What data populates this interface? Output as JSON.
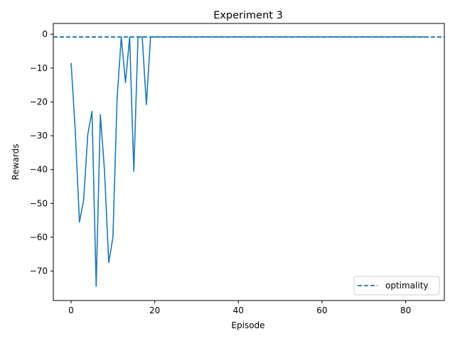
{
  "chart_data": {
    "type": "line",
    "title": "Experiment 3",
    "xlabel": "Episode",
    "ylabel": "Rewards",
    "xlim": [
      -4.25,
      89.25
    ],
    "ylim": [
      -78.7,
      3.2
    ],
    "x_ticks": [
      0,
      20,
      40,
      60,
      80
    ],
    "y_ticks": [
      0,
      -10,
      -20,
      -30,
      -40,
      -50,
      -60,
      -70
    ],
    "x_tick_labels": [
      "0",
      "20",
      "40",
      "60",
      "80"
    ],
    "y_tick_labels": [
      "0",
      "−10",
      "−20",
      "−30",
      "−40",
      "−50",
      "−60",
      "−70"
    ],
    "grid": false,
    "legend": {
      "position": "lower-right",
      "entries": [
        "optimality"
      ]
    },
    "series": [
      {
        "color": "#1f77b4",
        "style": "solid",
        "x": [
          0,
          1,
          2,
          3,
          4,
          5,
          6,
          7,
          8,
          9,
          10,
          11,
          12,
          13,
          14,
          15,
          16,
          17,
          18,
          19,
          20,
          21,
          22,
          23,
          24,
          25,
          26,
          27,
          28,
          29,
          30,
          31,
          32,
          33,
          34,
          35,
          36,
          37,
          38,
          39,
          40,
          41,
          42,
          43,
          44,
          45,
          46,
          47,
          48,
          49,
          50,
          51,
          52,
          53,
          54,
          55,
          56,
          57,
          58,
          59,
          60,
          61,
          62,
          63,
          64,
          65,
          66,
          67,
          68,
          69,
          70,
          71,
          72,
          73,
          74,
          75,
          76,
          77,
          78,
          79,
          80,
          81,
          82,
          83,
          84,
          85
        ],
        "y": [
          -8.5,
          -28.5,
          -55.5,
          -49,
          -29.5,
          -22.8,
          -74.5,
          -23.8,
          -40.5,
          -67.5,
          -60,
          -19,
          -0.8,
          -14.3,
          -0.8,
          -40.5,
          -0.8,
          -0.8,
          -20.8,
          -0.8,
          -0.8,
          -0.8,
          -0.8,
          -0.8,
          -0.8,
          -0.8,
          -0.8,
          -0.8,
          -0.8,
          -0.8,
          -0.8,
          -0.8,
          -0.8,
          -0.8,
          -0.8,
          -0.8,
          -0.8,
          -0.8,
          -0.8,
          -0.8,
          -0.8,
          -0.8,
          -0.8,
          -0.8,
          -0.8,
          -0.8,
          -0.8,
          -0.8,
          -0.8,
          -0.8,
          -0.8,
          -0.8,
          -0.8,
          -0.8,
          -0.8,
          -0.8,
          -0.8,
          -0.8,
          -0.8,
          -0.8,
          -0.8,
          -0.8,
          -0.8,
          -0.8,
          -0.8,
          -0.8,
          -0.8,
          -0.8,
          -0.8,
          -0.8,
          -0.8,
          -0.8,
          -0.8,
          -0.8,
          -0.8,
          -0.8,
          -0.8,
          -0.8,
          -0.8,
          -0.8,
          -0.8,
          -0.8,
          -0.8,
          -0.8,
          -0.8,
          -0.8
        ]
      },
      {
        "name": "optimality",
        "color": "#1f77b4",
        "style": "dashed",
        "type": "hline",
        "y": -0.8
      }
    ]
  }
}
